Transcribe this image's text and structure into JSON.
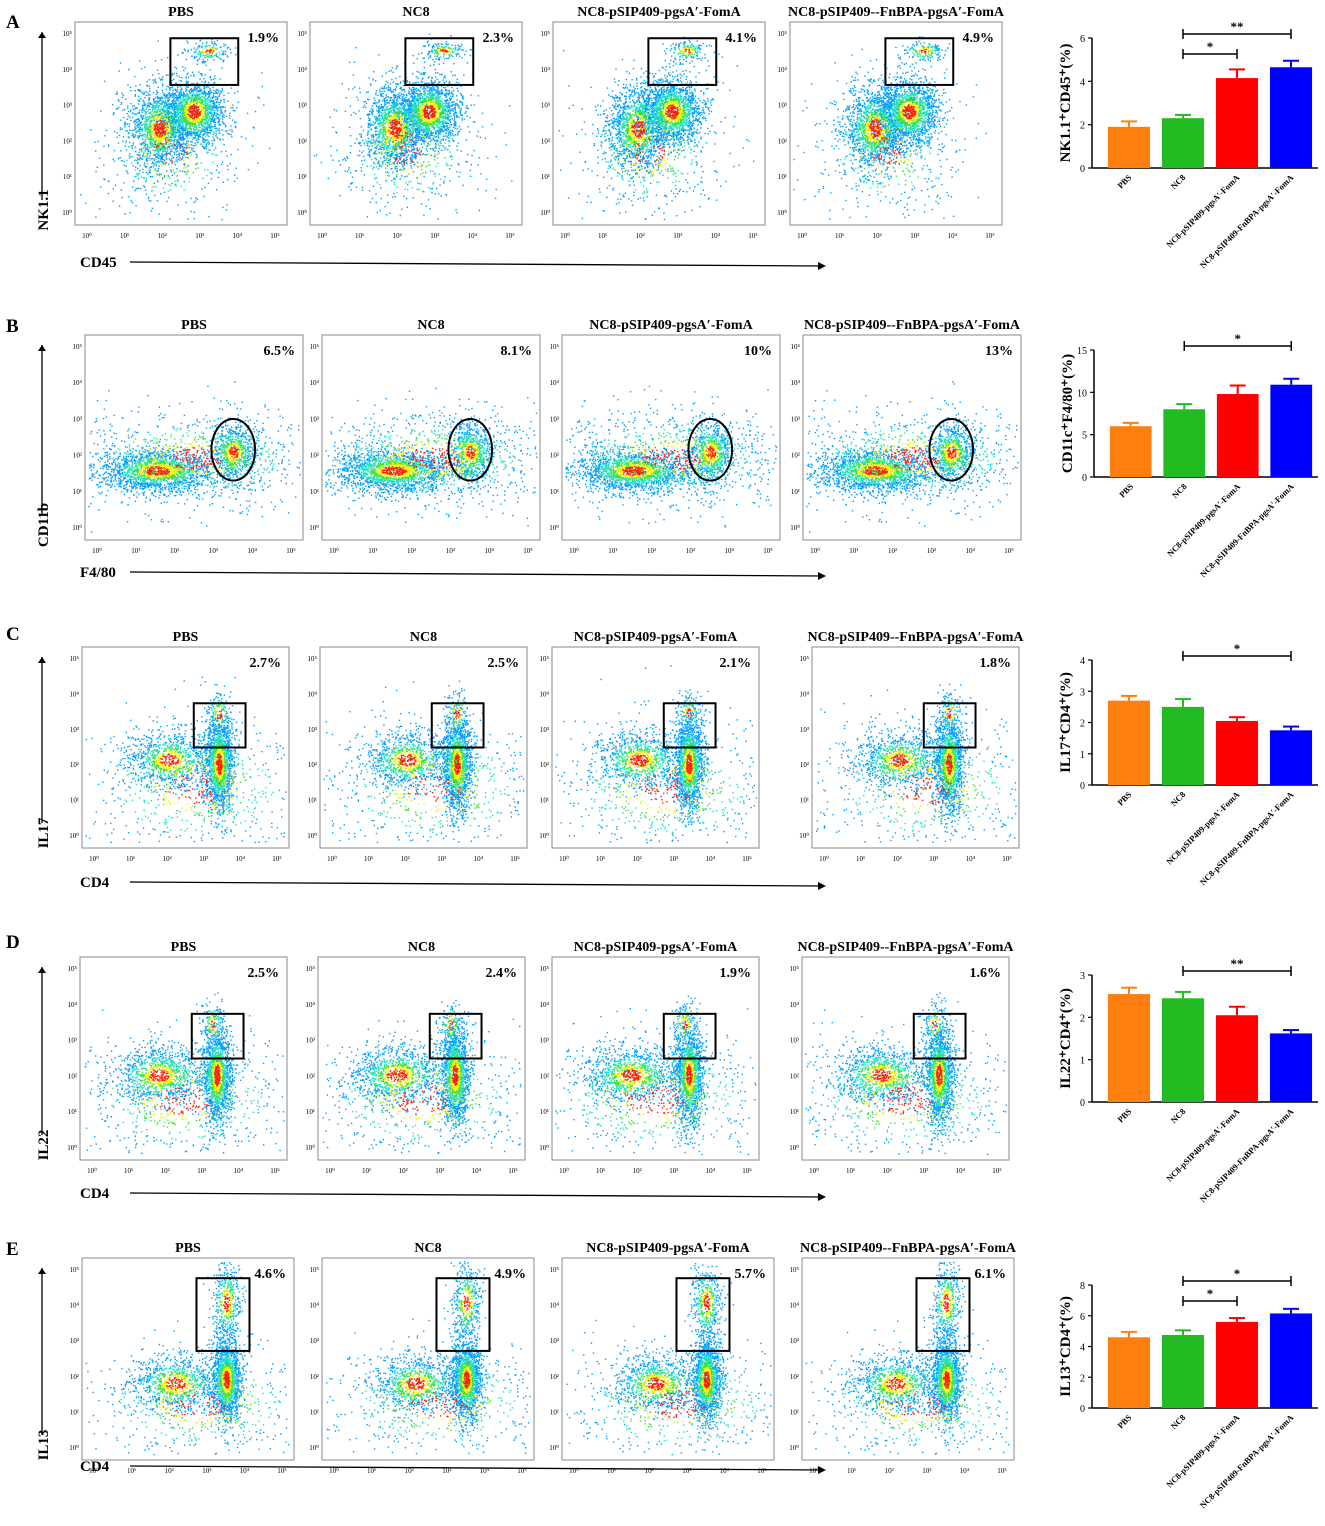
{
  "groups": [
    "PBS",
    "NC8",
    "NC8-pSIP409-pgsA′-FomA",
    "NC8-pSIP409--FnBPA-pgsA′-FomA"
  ],
  "bar_groups": [
    "PBS",
    "NC8",
    "NC8-pSIP409-pgsA′-FomA",
    "NC8-pSIP409-FnBPA-pgsA′-FomA"
  ],
  "bar_colors": [
    "#ff7f0e",
    "#22bb22",
    "#ff0000",
    "#0000ff"
  ],
  "flow_ticks": [
    "10⁰",
    "10¹",
    "10²",
    "10³",
    "10⁴",
    "10⁵"
  ],
  "panels": [
    {
      "letter": "A",
      "ylabel": "NK1.1",
      "xlabel": "CD45",
      "gate": "rect",
      "percents": [
        "1.9%",
        "2.3%",
        "4.1%",
        "4.9%"
      ]
    },
    {
      "letter": "B",
      "ylabel": "CD11b",
      "xlabel": "F4/80",
      "gate": "ellipse",
      "percents": [
        "6.5%",
        "8.1%",
        "10%",
        "13%"
      ]
    },
    {
      "letter": "C",
      "ylabel": "IL17",
      "xlabel": "CD4",
      "gate": "rect",
      "percents": [
        "2.7%",
        "2.5%",
        "2.1%",
        "1.8%"
      ]
    },
    {
      "letter": "D",
      "ylabel": "IL22",
      "xlabel": "CD4",
      "gate": "rect",
      "percents": [
        "2.5%",
        "2.4%",
        "1.9%",
        "1.6%"
      ]
    },
    {
      "letter": "E",
      "ylabel": "IL13",
      "xlabel": "CD4",
      "gate": "rect",
      "percents": [
        "4.6%",
        "4.9%",
        "5.7%",
        "6.1%"
      ]
    }
  ],
  "chart_data": [
    {
      "type": "bar",
      "panel": "A",
      "title": "",
      "ylabel": "NK1.1⁺CD45⁺(%)",
      "categories": [
        "PBS",
        "NC8",
        "NC8-pSIP409-pgsA′-FomA",
        "NC8-pSIP409-FnBPA-pgsA′-FomA"
      ],
      "values": [
        1.9,
        2.3,
        4.15,
        4.65
      ],
      "errors": [
        0.25,
        0.15,
        0.4,
        0.3
      ],
      "ylim": [
        0,
        6
      ],
      "yticks": [
        0,
        2,
        4,
        6
      ],
      "significance": [
        {
          "from": 1,
          "to": 2,
          "label": "*"
        },
        {
          "from": 1,
          "to": 3,
          "label": "**"
        }
      ]
    },
    {
      "type": "bar",
      "panel": "B",
      "title": "",
      "ylabel": "CD11c⁺F4/80⁺(%)",
      "categories": [
        "PBS",
        "NC8",
        "NC8-pSIP409-pgsA′-FomA",
        "NC8-pSIP409-FnBPA-pgsA′-FomA"
      ],
      "values": [
        6.0,
        8.0,
        9.8,
        10.9
      ],
      "errors": [
        0.4,
        0.6,
        1.0,
        0.7
      ],
      "ylim": [
        0,
        15
      ],
      "yticks": [
        0,
        5,
        10,
        15
      ],
      "significance": [
        {
          "from": 1,
          "to": 3,
          "label": "*"
        }
      ]
    },
    {
      "type": "bar",
      "panel": "C",
      "title": "",
      "ylabel": "IL17⁺CD4⁺(%)",
      "categories": [
        "PBS",
        "NC8",
        "NC8-pSIP409-pgsA′-FomA",
        "NC8-pSIP409-FnBPA-pgsA′-FomA"
      ],
      "values": [
        2.7,
        2.5,
        2.05,
        1.75
      ],
      "errors": [
        0.15,
        0.25,
        0.12,
        0.12
      ],
      "ylim": [
        0,
        4
      ],
      "yticks": [
        0,
        1,
        2,
        3,
        4
      ],
      "significance": [
        {
          "from": 1,
          "to": 3,
          "label": "*"
        }
      ]
    },
    {
      "type": "bar",
      "panel": "D",
      "title": "",
      "ylabel": "IL22⁺CD4⁺(%)",
      "categories": [
        "PBS",
        "NC8",
        "NC8-pSIP409-pgsA′-FomA",
        "NC8-pSIP409-FnBPA-pgsA′-FomA"
      ],
      "values": [
        2.55,
        2.45,
        2.05,
        1.62
      ],
      "errors": [
        0.15,
        0.15,
        0.2,
        0.08
      ],
      "ylim": [
        0,
        3
      ],
      "yticks": [
        0,
        1,
        2,
        3
      ],
      "significance": [
        {
          "from": 1,
          "to": 3,
          "label": "**"
        }
      ]
    },
    {
      "type": "bar",
      "panel": "E",
      "title": "",
      "ylabel": "IL13⁺CD4⁺(%)",
      "categories": [
        "PBS",
        "NC8",
        "NC8-pSIP409-pgsA′-FomA",
        "NC8-pSIP409-FnBPA-pgsA′-FomA"
      ],
      "values": [
        4.6,
        4.75,
        5.6,
        6.15
      ],
      "errors": [
        0.35,
        0.3,
        0.25,
        0.3
      ],
      "ylim": [
        0,
        8
      ],
      "yticks": [
        0,
        2,
        4,
        6,
        8
      ],
      "significance": [
        {
          "from": 1,
          "to": 2,
          "label": "*"
        },
        {
          "from": 1,
          "to": 3,
          "label": "*"
        }
      ]
    }
  ]
}
